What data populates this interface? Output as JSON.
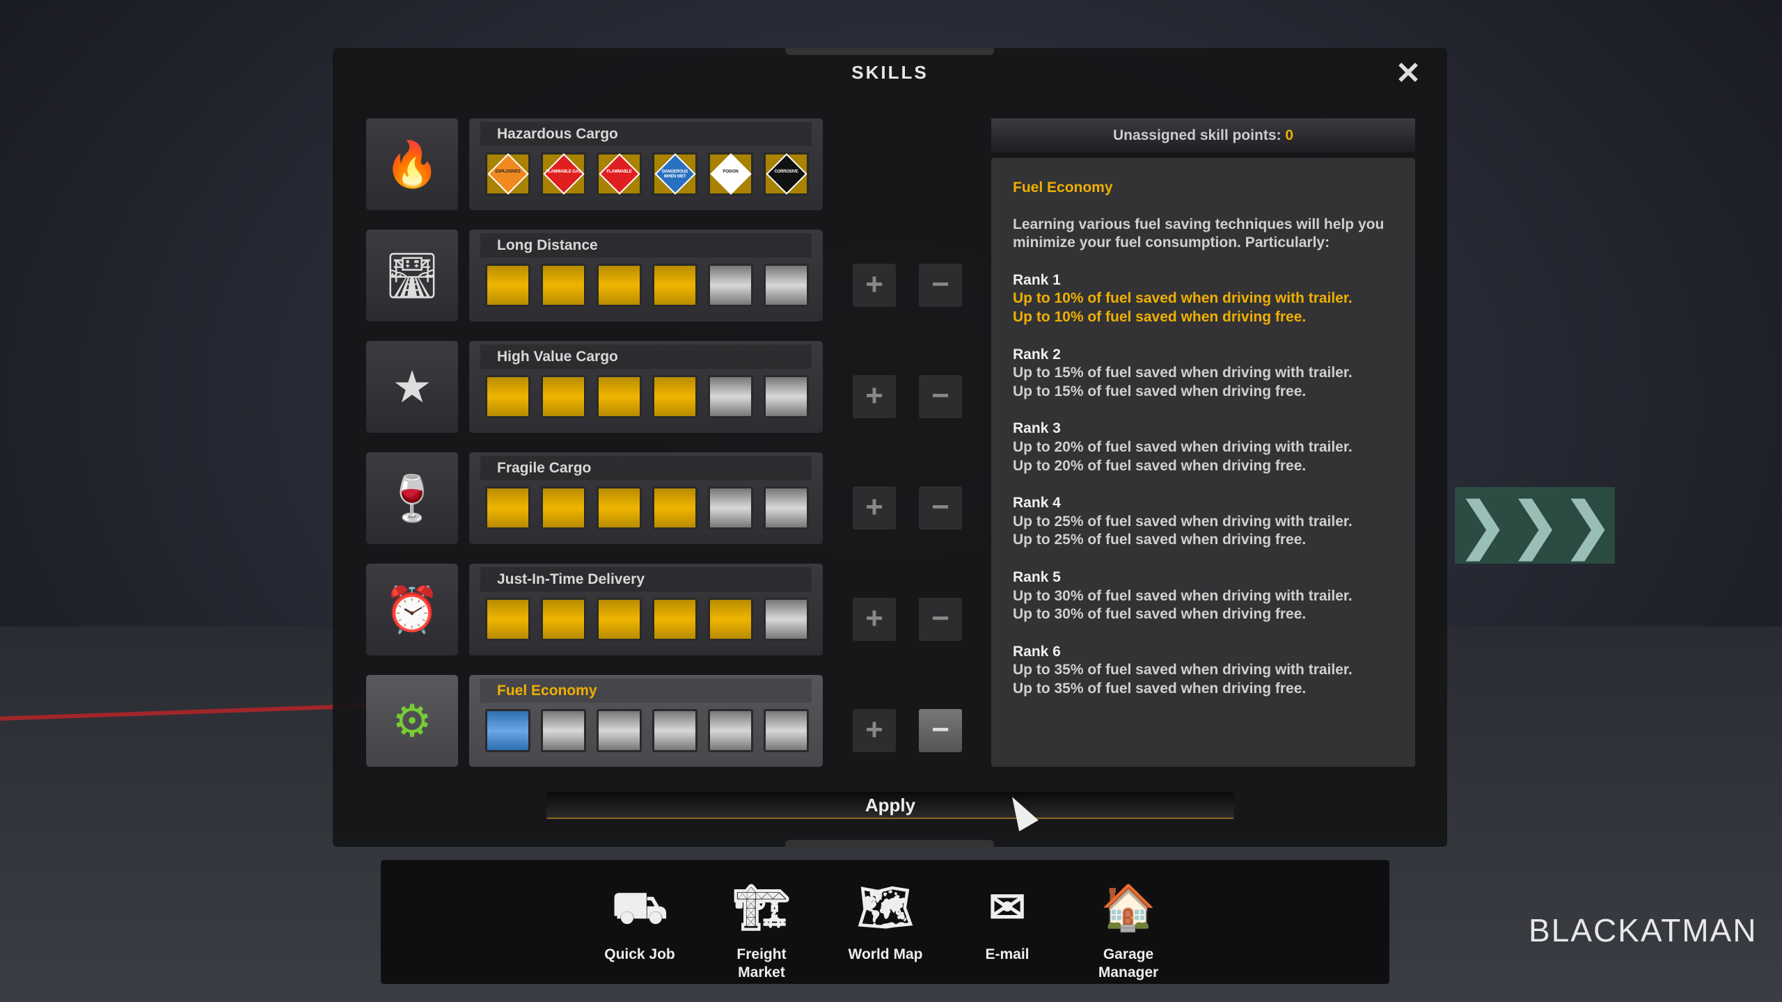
{
  "title": "SKILLS",
  "close_icon": "close-icon",
  "skills": [
    {
      "name": "Hazardous Cargo",
      "icon": "hazard-cargo-icon",
      "type": "hazard",
      "badges": [
        {
          "label": "EXPLOSIVES",
          "color": "#f08a20"
        },
        {
          "label": "FLAMMABLE GAS",
          "color": "#e02020"
        },
        {
          "label": "FLAMMABLE",
          "color": "#e02020"
        },
        {
          "label": "DANGEROUS WHEN WET",
          "color": "#2a70c0"
        },
        {
          "label": "POISON",
          "color": "#ffffff"
        },
        {
          "label": "CORROSIVE",
          "color": "#111111"
        }
      ]
    },
    {
      "name": "Long Distance",
      "icon": "long-distance-road-icon",
      "level": 4,
      "max": 6
    },
    {
      "name": "High Value Cargo",
      "icon": "high-value-cargo-star-icon",
      "level": 4,
      "max": 6
    },
    {
      "name": "Fragile Cargo",
      "icon": "fragile-cargo-glass-icon",
      "level": 4,
      "max": 6
    },
    {
      "name": "Just-In-Time Delivery",
      "icon": "just-in-time-clock-icon",
      "level": 5,
      "max": 6
    },
    {
      "name": "Fuel Economy",
      "icon": "fuel-economy-leaf-icon",
      "level": 1,
      "max": 6,
      "selected": true
    }
  ],
  "points": {
    "label": "Unassigned skill points:",
    "value": "0"
  },
  "description": {
    "heading": "Fuel Economy",
    "intro": "Learning various fuel saving techniques will help you minimize your fuel consumption. Particularly:",
    "ranks": [
      {
        "title": "Rank 1",
        "lines": [
          "Up to 10% of fuel saved when driving with trailer.",
          "Up to 10% of fuel saved when driving free."
        ],
        "current": true
      },
      {
        "title": "Rank 2",
        "lines": [
          "Up to 15% of fuel saved when driving with trailer.",
          "Up to 15% of fuel saved when driving free."
        ]
      },
      {
        "title": "Rank 3",
        "lines": [
          "Up to 20% of fuel saved when driving with trailer.",
          "Up to 20% of fuel saved when driving free."
        ]
      },
      {
        "title": "Rank 4",
        "lines": [
          "Up to 25% of fuel saved when driving with trailer.",
          "Up to 25% of fuel saved when driving free."
        ]
      },
      {
        "title": "Rank 5",
        "lines": [
          "Up to 30% of fuel saved when driving with trailer.",
          "Up to 30% of fuel saved when driving free."
        ]
      },
      {
        "title": "Rank 6",
        "lines": [
          "Up to 35% of fuel saved when driving with trailer.",
          "Up to 35% of fuel saved when driving free."
        ]
      }
    ]
  },
  "apply_label": "Apply",
  "nav": [
    {
      "label": "Quick Job",
      "icon": "quick-job-icon",
      "glyph": "⛟"
    },
    {
      "label": "Freight Market",
      "icon": "forklift-icon",
      "glyph": "🏗"
    },
    {
      "label": "World Map",
      "icon": "world-map-icon",
      "glyph": "🗺"
    },
    {
      "label": "E-mail",
      "icon": "email-icon",
      "glyph": "✉"
    },
    {
      "label": "Garage Manager",
      "icon": "garage-manager-icon",
      "glyph": "🏠"
    }
  ],
  "watermark": "BLACKATMAN",
  "colors": {
    "accent": "#f0b000",
    "current_rank": "#6aa8e8"
  }
}
